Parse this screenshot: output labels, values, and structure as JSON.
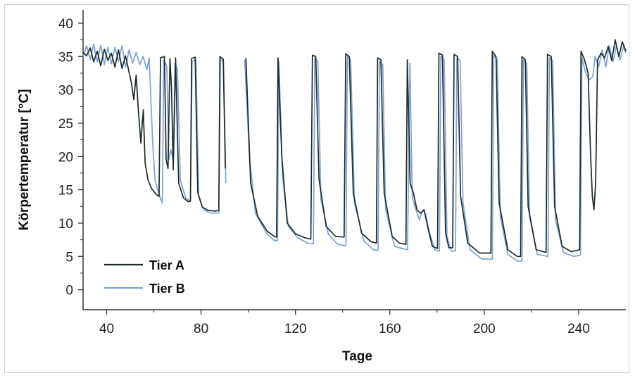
{
  "chart_data": {
    "type": "line",
    "title": "",
    "xlabel": "Tage",
    "ylabel": "Körpertemperatur [°C]",
    "xlim": [
      30,
      260
    ],
    "ylim": [
      -3,
      42
    ],
    "x_ticks": [
      40,
      80,
      120,
      160,
      200,
      240
    ],
    "y_ticks": [
      0,
      5,
      10,
      15,
      20,
      25,
      30,
      35,
      40
    ],
    "grid": false,
    "legend_position": "bottom-left",
    "colors": {
      "Tier A": "#1e2a2c",
      "Tier B": "#7aa3d6"
    },
    "series": [
      {
        "name": "Tier A",
        "points": [
          [
            30,
            35.6
          ],
          [
            31.5,
            35.1
          ],
          [
            33,
            36.3
          ],
          [
            34.5,
            34.2
          ],
          [
            36,
            35.8
          ],
          [
            37.5,
            33.6
          ],
          [
            39,
            36.1
          ],
          [
            40.5,
            34.4
          ],
          [
            42,
            35.5
          ],
          [
            43.5,
            33.4
          ],
          [
            45,
            36.0
          ],
          [
            46.5,
            33.2
          ],
          [
            48,
            35.1
          ],
          [
            49.5,
            32.6
          ],
          [
            50.5,
            31.0
          ],
          [
            51.5,
            28.5
          ],
          [
            52.5,
            32.2
          ],
          [
            53.5,
            26.5
          ],
          [
            54.5,
            22.0
          ],
          [
            55.5,
            27.0
          ],
          [
            56.3,
            19.0
          ],
          [
            57.5,
            16.5
          ],
          [
            59,
            15.2
          ],
          [
            61,
            14.3
          ],
          [
            62.2,
            14.0
          ],
          [
            62.8,
            34.8
          ],
          [
            64.5,
            35.0
          ],
          [
            65.2,
            19.5
          ],
          [
            66,
            18.2
          ],
          [
            66.8,
            34.7
          ],
          [
            67.5,
            30.0
          ],
          [
            68.2,
            18.0
          ],
          [
            69.2,
            34.8
          ],
          [
            70.5,
            16.0
          ],
          [
            72.5,
            13.8
          ],
          [
            74.5,
            13.2
          ],
          [
            75.5,
            13.3
          ],
          [
            76,
            34.7
          ],
          [
            77.5,
            34.9
          ],
          [
            78.6,
            14.6
          ],
          [
            80.5,
            12.4
          ],
          [
            83,
            11.9
          ],
          [
            86,
            11.8
          ],
          [
            87.5,
            11.9
          ],
          [
            88,
            35.0
          ],
          [
            89.4,
            34.6
          ],
          [
            90.3,
            18.2
          ],
          [
            null,
            null
          ],
          [
            99,
            34.8
          ],
          [
            101,
            16.0
          ],
          [
            104,
            11.0
          ],
          [
            108,
            8.8
          ],
          [
            111,
            8.0
          ],
          [
            112,
            7.9
          ],
          [
            112.6,
            34.8
          ],
          [
            114.2,
            20.0
          ],
          [
            116.5,
            10.0
          ],
          [
            120,
            8.4
          ],
          [
            124,
            7.8
          ],
          [
            126.5,
            7.6
          ],
          [
            127.2,
            35.2
          ],
          [
            128.6,
            35.0
          ],
          [
            130,
            16.5
          ],
          [
            133,
            9.5
          ],
          [
            137,
            8.0
          ],
          [
            140.6,
            7.9
          ],
          [
            141.3,
            35.4
          ],
          [
            142.8,
            35.0
          ],
          [
            144.5,
            14.5
          ],
          [
            148,
            8.5
          ],
          [
            152,
            7.2
          ],
          [
            154.3,
            7.0
          ],
          [
            154.8,
            34.8
          ],
          [
            156.2,
            34.5
          ],
          [
            157.6,
            14.5
          ],
          [
            161,
            8.0
          ],
          [
            164,
            7.0
          ],
          [
            166.8,
            6.8
          ],
          [
            167.4,
            34.5
          ],
          [
            168.6,
            16.0
          ],
          [
            170,
            14.5
          ],
          [
            171.5,
            12.0
          ],
          [
            173,
            11.5
          ],
          [
            174.5,
            12.0
          ],
          [
            176,
            9.5
          ],
          [
            178,
            6.5
          ],
          [
            180.2,
            6.2
          ],
          [
            180.8,
            35.5
          ],
          [
            182.3,
            35.2
          ],
          [
            183.6,
            8.5
          ],
          [
            185,
            6.3
          ],
          [
            186.6,
            6.3
          ],
          [
            187.2,
            35.3
          ],
          [
            188.7,
            35.0
          ],
          [
            190,
            14.0
          ],
          [
            193,
            7.0
          ],
          [
            198,
            5.5
          ],
          [
            202.8,
            5.5
          ],
          [
            203.4,
            35.8
          ],
          [
            205,
            35.0
          ],
          [
            206.3,
            13.0
          ],
          [
            210,
            6.0
          ],
          [
            214,
            5.0
          ],
          [
            215.4,
            5.0
          ],
          [
            216,
            35.0
          ],
          [
            217.4,
            34.5
          ],
          [
            218.6,
            12.5
          ],
          [
            222,
            6.0
          ],
          [
            226.2,
            5.6
          ],
          [
            226.8,
            35.3
          ],
          [
            228.4,
            35.0
          ],
          [
            229.8,
            12.5
          ],
          [
            233,
            6.5
          ],
          [
            237,
            5.7
          ],
          [
            240.4,
            6.0
          ],
          [
            241,
            35.8
          ],
          [
            242.5,
            34.5
          ],
          [
            244,
            32.5
          ],
          [
            245,
            21.0
          ],
          [
            245.8,
            14.0
          ],
          [
            246.5,
            12.0
          ],
          [
            247.2,
            16.0
          ],
          [
            248,
            34.5
          ],
          [
            249.5,
            35.5
          ],
          [
            251,
            34.8
          ],
          [
            252.5,
            36.5
          ],
          [
            254,
            34.4
          ],
          [
            255.5,
            37.5
          ],
          [
            257,
            35.0
          ],
          [
            258.5,
            37.2
          ],
          [
            260,
            35.8
          ]
        ]
      },
      {
        "name": "Tier B",
        "points": [
          [
            30,
            35.0
          ],
          [
            31.5,
            36.6
          ],
          [
            33,
            34.5
          ],
          [
            34.5,
            36.9
          ],
          [
            36,
            34.2
          ],
          [
            37.5,
            36.7
          ],
          [
            39,
            33.8
          ],
          [
            40.5,
            36.4
          ],
          [
            42,
            33.9
          ],
          [
            43.5,
            36.4
          ],
          [
            45,
            34.3
          ],
          [
            46.5,
            36.6
          ],
          [
            48,
            33.4
          ],
          [
            49.5,
            36.0
          ],
          [
            51,
            34.0
          ],
          [
            52.5,
            35.6
          ],
          [
            54,
            33.8
          ],
          [
            55.5,
            35.0
          ],
          [
            57,
            33.0
          ],
          [
            58,
            34.8
          ],
          [
            59.5,
            22.0
          ],
          [
            60.5,
            16.5
          ],
          [
            62,
            14.5
          ],
          [
            63.6,
            13.0
          ],
          [
            64.2,
            34.5
          ],
          [
            65.5,
            33.5
          ],
          [
            66.3,
            19.5
          ],
          [
            67.2,
            21.0
          ],
          [
            68.2,
            19.5
          ],
          [
            69,
            34.0
          ],
          [
            70,
            33.0
          ],
          [
            71.2,
            16.5
          ],
          [
            73.5,
            13.8
          ],
          [
            75.5,
            13.2
          ],
          [
            76.2,
            34.3
          ],
          [
            77.8,
            34.5
          ],
          [
            79,
            14.0
          ],
          [
            81,
            12.0
          ],
          [
            84,
            11.5
          ],
          [
            87.5,
            11.5
          ],
          [
            88.2,
            34.6
          ],
          [
            89.5,
            34.2
          ],
          [
            90.5,
            16.0
          ],
          [
            null,
            null
          ],
          [
            98.5,
            34.5
          ],
          [
            100.5,
            20.0
          ],
          [
            103,
            11.5
          ],
          [
            108,
            8.3
          ],
          [
            111,
            7.4
          ],
          [
            112.4,
            7.3
          ],
          [
            113,
            34.2
          ],
          [
            114.5,
            17.0
          ],
          [
            117,
            9.5
          ],
          [
            121,
            7.8
          ],
          [
            125,
            7.0
          ],
          [
            127.6,
            6.9
          ],
          [
            128.2,
            34.8
          ],
          [
            129.5,
            34.2
          ],
          [
            130.8,
            13.5
          ],
          [
            134,
            8.3
          ],
          [
            138,
            6.8
          ],
          [
            141.4,
            6.6
          ],
          [
            142,
            35.0
          ],
          [
            143.4,
            34.5
          ],
          [
            145,
            13.0
          ],
          [
            149,
            7.3
          ],
          [
            153,
            6.0
          ],
          [
            155,
            5.9
          ],
          [
            155.6,
            34.2
          ],
          [
            157,
            33.8
          ],
          [
            158.2,
            12.0
          ],
          [
            162,
            6.5
          ],
          [
            167.5,
            6.0
          ],
          [
            168.5,
            34.0
          ],
          [
            169.5,
            14.0
          ],
          [
            171,
            12.0
          ],
          [
            172.5,
            10.5
          ],
          [
            174,
            12.0
          ],
          [
            175,
            11.5
          ],
          [
            176.5,
            9.0
          ],
          [
            179,
            6.0
          ],
          [
            181,
            5.8
          ],
          [
            181.6,
            35.0
          ],
          [
            183,
            34.5
          ],
          [
            184.2,
            8.0
          ],
          [
            186,
            5.8
          ],
          [
            187.8,
            5.8
          ],
          [
            188.4,
            34.8
          ],
          [
            189.8,
            34.4
          ],
          [
            191,
            13.0
          ],
          [
            194,
            6.0
          ],
          [
            199,
            4.6
          ],
          [
            203.4,
            4.6
          ],
          [
            204,
            35.2
          ],
          [
            205.5,
            34.5
          ],
          [
            206.8,
            11.0
          ],
          [
            210,
            5.3
          ],
          [
            214,
            4.3
          ],
          [
            216,
            4.3
          ],
          [
            216.6,
            34.5
          ],
          [
            218,
            34.0
          ],
          [
            219.2,
            11.0
          ],
          [
            222.5,
            5.3
          ],
          [
            227,
            5.0
          ],
          [
            227.6,
            34.8
          ],
          [
            229,
            34.4
          ],
          [
            230.2,
            10.5
          ],
          [
            233.5,
            5.6
          ],
          [
            238,
            5.0
          ],
          [
            240.8,
            5.2
          ],
          [
            241.4,
            34.8
          ],
          [
            243,
            32.5
          ],
          [
            244.5,
            31.5
          ],
          [
            246,
            32.0
          ],
          [
            247,
            35.0
          ],
          [
            248.5,
            33.5
          ],
          [
            250,
            36.0
          ],
          [
            251.5,
            33.4
          ],
          [
            253,
            36.7
          ],
          [
            254.5,
            34.2
          ],
          [
            256,
            36.6
          ],
          [
            257.5,
            34.5
          ],
          [
            259,
            36.5
          ],
          [
            260,
            35.5
          ]
        ]
      }
    ]
  }
}
